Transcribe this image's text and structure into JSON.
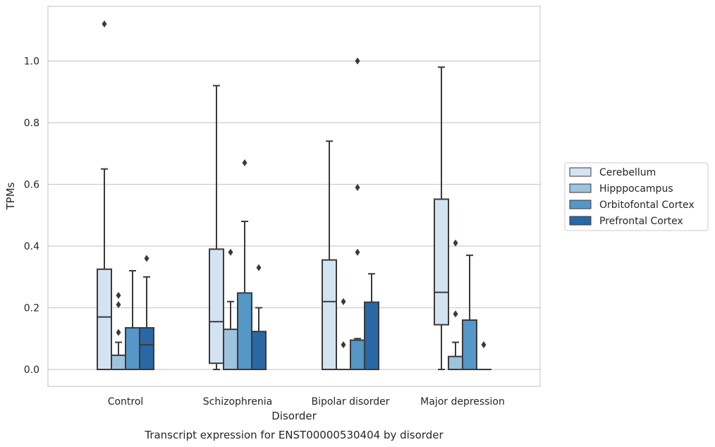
{
  "caption": "Transcript expression for ENST00000530404 by disorder",
  "chart_data": {
    "type": "box",
    "xlabel": "Disorder",
    "ylabel": "TPMs",
    "ylim": [
      -0.055,
      1.18
    ],
    "yticks": [
      0.0,
      0.2,
      0.4,
      0.6,
      0.8,
      1.0
    ],
    "ytick_labels": [
      "0.0",
      "0.2",
      "0.4",
      "0.6",
      "0.8",
      "1.0"
    ],
    "grid": "horizontal",
    "legend_position": "right",
    "categories": [
      "Control",
      "Schizophrenia",
      "Bipolar disorder",
      "Major depression"
    ],
    "series": [
      {
        "name": "Cerebellum",
        "color": "#d3e3f2",
        "boxes": [
          {
            "whislo": 0.0,
            "q1": 0.0,
            "med": 0.17,
            "q3": 0.325,
            "whishi": 0.65,
            "fliers": [
              1.12
            ]
          },
          {
            "whislo": 0.0,
            "q1": 0.02,
            "med": 0.155,
            "q3": 0.39,
            "whishi": 0.92,
            "fliers": []
          },
          {
            "whislo": 0.0,
            "q1": 0.0,
            "med": 0.22,
            "q3": 0.355,
            "whishi": 0.74,
            "fliers": []
          },
          {
            "whislo": 0.0,
            "q1": 0.145,
            "med": 0.25,
            "q3": 0.552,
            "whishi": 0.98,
            "fliers": []
          }
        ]
      },
      {
        "name": "Hipppocampus",
        "color": "#9dc3de",
        "boxes": [
          {
            "whislo": 0.0,
            "q1": 0.0,
            "med": 0.0,
            "q3": 0.046,
            "whishi": 0.088,
            "fliers": [
              0.12,
              0.21,
              0.24
            ]
          },
          {
            "whislo": 0.0,
            "q1": 0.0,
            "med": 0.0,
            "q3": 0.13,
            "whishi": 0.22,
            "fliers": [
              0.38
            ]
          },
          {
            "whislo": 0.0,
            "q1": 0.0,
            "med": 0.0,
            "q3": 0.0,
            "whishi": 0.0,
            "fliers": [
              0.08,
              0.22
            ]
          },
          {
            "whislo": 0.0,
            "q1": 0.0,
            "med": 0.0,
            "q3": 0.042,
            "whishi": 0.088,
            "fliers": [
              0.18,
              0.41
            ]
          }
        ]
      },
      {
        "name": "Orbitofontal Cortex",
        "color": "#5597c6",
        "boxes": [
          {
            "whislo": 0.0,
            "q1": 0.0,
            "med": 0.0,
            "q3": 0.135,
            "whishi": 0.32,
            "fliers": []
          },
          {
            "whislo": 0.0,
            "q1": 0.0,
            "med": 0.0,
            "q3": 0.248,
            "whishi": 0.48,
            "fliers": [
              0.67
            ]
          },
          {
            "whislo": 0.0,
            "q1": 0.0,
            "med": 0.0,
            "q3": 0.095,
            "whishi": 0.1,
            "fliers": [
              0.38,
              0.59,
              1.0
            ]
          },
          {
            "whislo": 0.0,
            "q1": 0.0,
            "med": 0.0,
            "q3": 0.16,
            "whishi": 0.37,
            "fliers": []
          }
        ]
      },
      {
        "name": "Prefrontal Cortex",
        "color": "#2a67a5",
        "boxes": [
          {
            "whislo": 0.0,
            "q1": 0.0,
            "med": 0.08,
            "q3": 0.135,
            "whishi": 0.3,
            "fliers": [
              0.36
            ]
          },
          {
            "whislo": 0.0,
            "q1": 0.0,
            "med": 0.0,
            "q3": 0.123,
            "whishi": 0.2,
            "fliers": [
              0.33
            ]
          },
          {
            "whislo": 0.0,
            "q1": 0.0,
            "med": 0.0,
            "q3": 0.218,
            "whishi": 0.31,
            "fliers": []
          },
          {
            "whislo": 0.0,
            "q1": 0.0,
            "med": 0.0,
            "q3": 0.0,
            "whishi": 0.0,
            "fliers": [
              0.08
            ]
          }
        ]
      }
    ]
  }
}
